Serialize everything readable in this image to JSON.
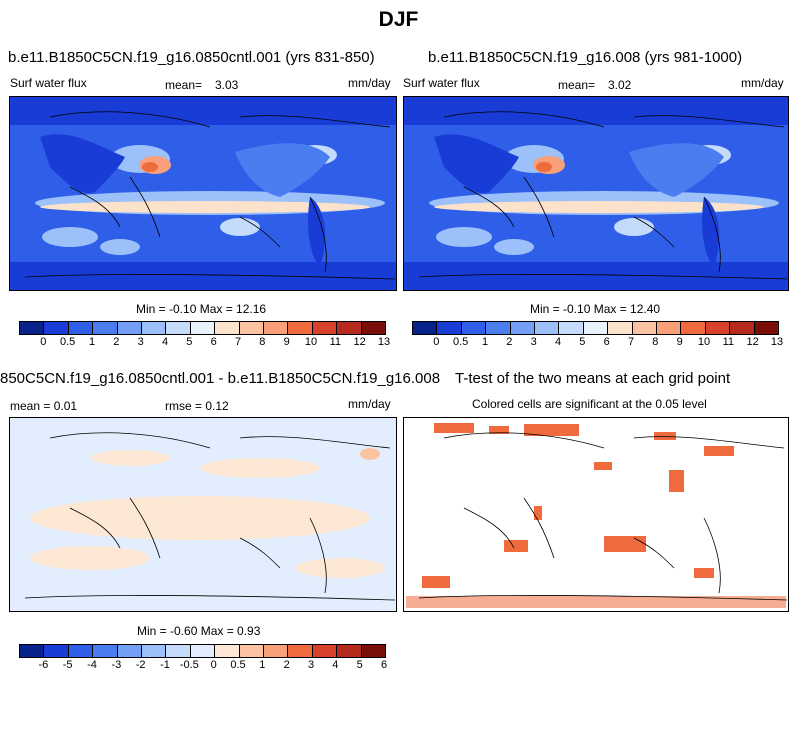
{
  "main_title": "DJF",
  "panels": {
    "tl": {
      "title": "b.e11.B1850C5CN.f19_g16.0850cntl.001 (yrs 831-850)",
      "left_label": "Surf water flux",
      "mean_label": "mean=",
      "mean_value": "3.03",
      "units": "mm/day",
      "minmax": "Min =  -0.10 Max =  12.16"
    },
    "tr": {
      "title": "b.e11.B1850C5CN.f19_g16.008 (yrs 981-1000)",
      "left_label": "Surf water flux",
      "mean_label": "mean=",
      "mean_value": "3.02",
      "units": "mm/day",
      "minmax": "Min =  -0.10 Max =  12.40"
    },
    "bl": {
      "title": "850C5CN.f19_g16.0850cntl.001 - b.e11.B1850C5CN.f19_g16.008",
      "mean_text": "mean =   0.01",
      "rmse_text": "rmse =   0.12",
      "units": "mm/day",
      "minmax": "Min =  -0.60 Max =   0.93"
    },
    "br": {
      "title": "T-test of the two means at each grid point",
      "subtitle": "Colored cells are significant at the 0.05 level"
    }
  },
  "colorbars": {
    "abs": {
      "colors": [
        "#08228c",
        "#1a3cd6",
        "#2f5fe8",
        "#4a7df0",
        "#739ff5",
        "#9cc0f9",
        "#c4dbfb",
        "#eaf3fd",
        "#fde2cb",
        "#fcc3a2",
        "#f8a07a",
        "#ef6a3c",
        "#d8412a",
        "#b52a1c",
        "#7a0f0a"
      ],
      "labels": [
        "0",
        "0.5",
        "1",
        "2",
        "3",
        "4",
        "5",
        "6",
        "7",
        "8",
        "9",
        "10",
        "11",
        "12",
        "13"
      ]
    },
    "diff": {
      "colors": [
        "#08228c",
        "#1a3cd6",
        "#2f5fe8",
        "#4a7df0",
        "#739ff5",
        "#9cc0f9",
        "#c4dbfb",
        "#e2eefd",
        "#fde8d6",
        "#fcc3a2",
        "#f8a07a",
        "#ef6a3c",
        "#d8412a",
        "#b52a1c",
        "#7a0f0a"
      ],
      "labels": [
        "-6",
        "-5",
        "-4",
        "-3",
        "-2",
        "-1",
        "-0.5",
        "0",
        "0.5",
        "1",
        "2",
        "3",
        "4",
        "5",
        "6"
      ]
    }
  },
  "chart_data": [
    {
      "type": "heatmap",
      "title": "b.e11.B1850C5CN.f19_g16.0850cntl.001 (yrs 831-850)",
      "variable": "Surf water flux",
      "units": "mm/day",
      "mean": 3.03,
      "min": -0.1,
      "max": 12.16
    },
    {
      "type": "heatmap",
      "title": "b.e11.B1850C5CN.f19_g16.008 (yrs 981-1000)",
      "variable": "Surf water flux",
      "units": "mm/day",
      "mean": 3.02,
      "min": -0.1,
      "max": 12.4
    },
    {
      "type": "heatmap",
      "title": "850C5CN.f19_g16.0850cntl.001 - b.e11.B1850C5CN.f19_g16.008",
      "units": "mm/day",
      "mean": 0.01,
      "rmse": 0.12,
      "min": -0.6,
      "max": 0.93
    },
    {
      "type": "heatmap",
      "title": "T-test of the two means at each grid point",
      "subtitle": "Colored cells are significant at the 0.05 level"
    }
  ]
}
